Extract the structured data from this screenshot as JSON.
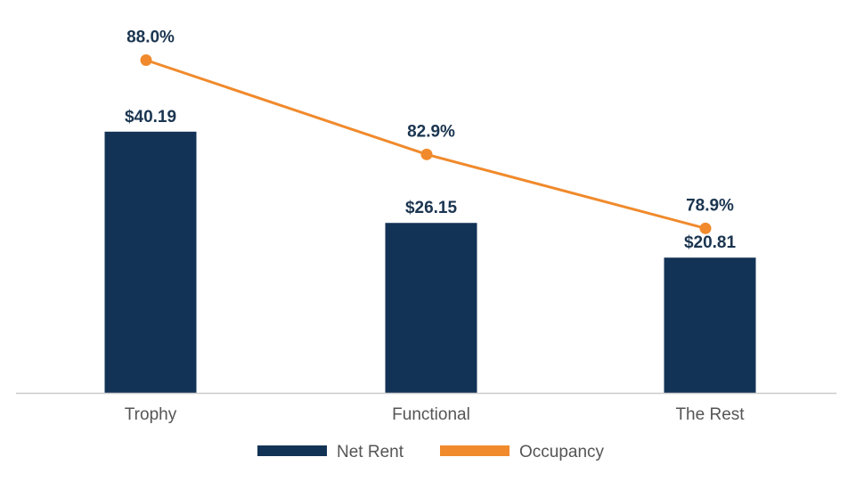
{
  "chart_data": {
    "type": "bar",
    "categories": [
      "Trophy",
      "Functional",
      "The Rest"
    ],
    "series": [
      {
        "name": "Net Rent",
        "type": "bar",
        "values": [
          40.19,
          26.15,
          20.81
        ],
        "labels": [
          "$40.19",
          "$26.15",
          "$20.81"
        ],
        "color": "#133356"
      },
      {
        "name": "Occupancy",
        "type": "line",
        "values": [
          88.0,
          82.9,
          78.9
        ],
        "labels": [
          "88.0%",
          "82.9%",
          "78.9%"
        ],
        "color": "#f08a2c"
      }
    ],
    "bar_axis_range": [
      0,
      44
    ],
    "line_axis_range": [
      70,
      90
    ],
    "grid": false,
    "legend_position": "bottom-center",
    "axis_line_color": "#cccccc"
  }
}
